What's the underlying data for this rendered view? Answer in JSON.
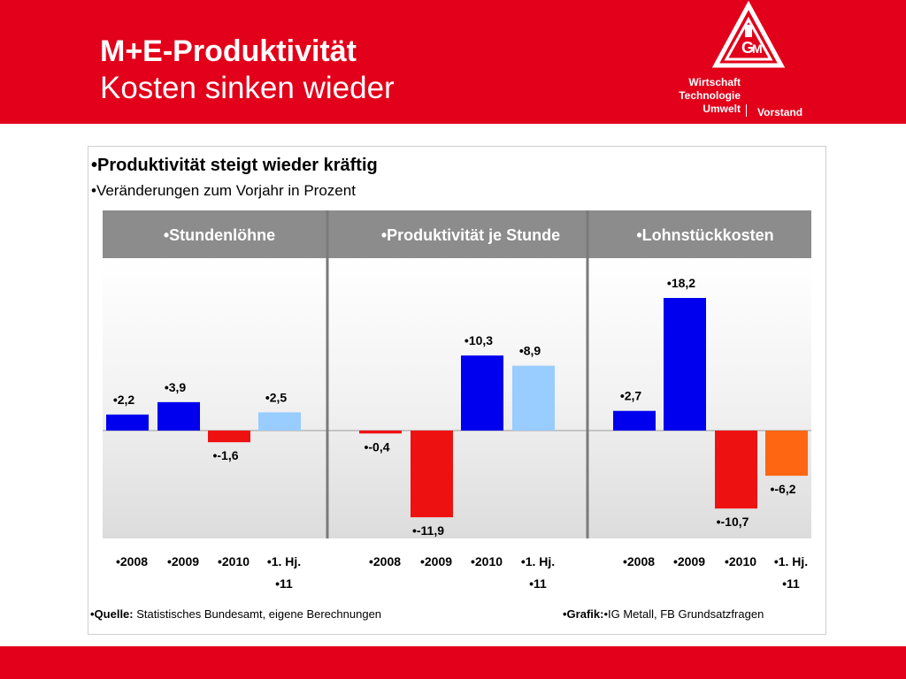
{
  "header": {
    "title": "M+E-Produktivität",
    "subtitle": "Kosten sinken wieder",
    "org_lines": [
      "Wirtschaft",
      "Technologie",
      "Umwelt"
    ],
    "org_unit": "Vorstand",
    "logo_text": "IGM",
    "brand_color": "#e2001a"
  },
  "content": {
    "headline": "•Produktivität steigt wieder kräftig",
    "subline": "•Veränderungen zum Vorjahr in Prozent",
    "source_label": "•Quelle:",
    "source_text": " Statistisches Bundesamt, eigene Berechnungen",
    "grafik_label": "•Grafik:",
    "grafik_text": "•IG Metall, FB Grundsatzfragen"
  },
  "chart_data": [
    {
      "type": "bar",
      "title": "•Stundenlöhne",
      "categories": [
        "•2008",
        "•2009",
        "•2010",
        "•1. Hj. •11"
      ],
      "values": [
        2.2,
        3.9,
        -1.6,
        2.5
      ],
      "labels": [
        "•2,2",
        "•3,9",
        "•-1,6",
        "•2,5"
      ],
      "colors": [
        "#0000ee",
        "#0000ee",
        "#ee1111",
        "#99ccff"
      ],
      "ylim": [
        -15,
        24
      ]
    },
    {
      "type": "bar",
      "title": "•Produktivität je Stunde",
      "categories": [
        "•2008",
        "•2009",
        "•2010",
        "•1. Hj. •11"
      ],
      "values": [
        -0.4,
        -11.9,
        10.3,
        8.9
      ],
      "labels": [
        "•-0,4",
        "•-11,9",
        "•10,3",
        "•8,9"
      ],
      "colors": [
        "#ee1111",
        "#ee1111",
        "#0000ee",
        "#99ccff"
      ],
      "ylim": [
        -15,
        24
      ]
    },
    {
      "type": "bar",
      "title": "•Lohnstückkosten",
      "categories": [
        "•2008",
        "•2009",
        "•2010",
        "•1. Hj. •11"
      ],
      "values": [
        2.7,
        18.2,
        -10.7,
        -6.2
      ],
      "labels": [
        "•2,7",
        "•18,2",
        "•-10,7",
        "•-6,2"
      ],
      "colors": [
        "#0000ee",
        "#0000ee",
        "#ee1111",
        "#ff6611"
      ],
      "ylim": [
        -15,
        24
      ]
    }
  ]
}
